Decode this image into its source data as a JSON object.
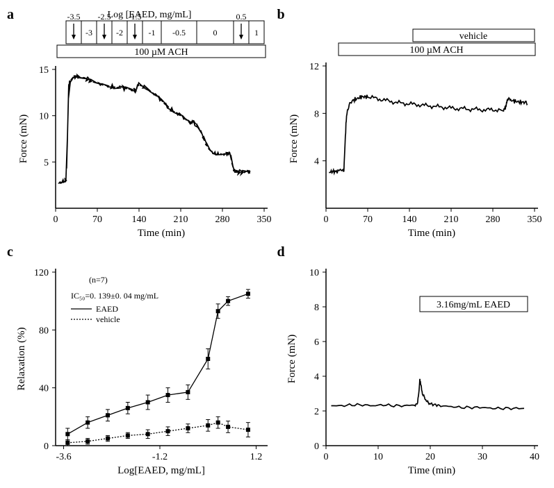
{
  "panels": {
    "a": {
      "label": "a",
      "top_axis_label": "Log [EAED, mg/mL]",
      "top_ticks": [
        "-3.5",
        "-3",
        "-2.5",
        "-2",
        "-1.5",
        "-1",
        "-0.5",
        "0",
        "0.5",
        "1"
      ],
      "treatment_bar": "100 µM ACH",
      "xlabel": "Time (min)",
      "ylabel": "Force (mN)",
      "xlim": [
        0,
        350
      ],
      "xticks": [
        0,
        70,
        140,
        210,
        280,
        350
      ],
      "ylim": [
        0,
        15
      ],
      "yticks": [
        5,
        10,
        15
      ],
      "trace_color": "#000000",
      "background_color": "#ffffff",
      "trace": [
        [
          5,
          2.7
        ],
        [
          10,
          2.8
        ],
        [
          15,
          2.9
        ],
        [
          18,
          3.0
        ],
        [
          20,
          8
        ],
        [
          22,
          13.4
        ],
        [
          25,
          13.8
        ],
        [
          30,
          14.2
        ],
        [
          35,
          14.3
        ],
        [
          40,
          14.2
        ],
        [
          50,
          14.0
        ],
        [
          55,
          13.9
        ],
        [
          60,
          13.7
        ],
        [
          70,
          13.5
        ],
        [
          80,
          13.3
        ],
        [
          90,
          13.2
        ],
        [
          100,
          13.1
        ],
        [
          110,
          13.0
        ],
        [
          120,
          12.9
        ],
        [
          130,
          12.8
        ],
        [
          135,
          12.7
        ],
        [
          138,
          13.4
        ],
        [
          140,
          13.3
        ],
        [
          145,
          13.2
        ],
        [
          150,
          13.0
        ],
        [
          160,
          12.6
        ],
        [
          170,
          12.1
        ],
        [
          180,
          11.5
        ],
        [
          190,
          10.9
        ],
        [
          200,
          10.4
        ],
        [
          210,
          10.0
        ],
        [
          220,
          9.5
        ],
        [
          228,
          9.2
        ],
        [
          230,
          9.3
        ],
        [
          235,
          9.1
        ],
        [
          240,
          8.7
        ],
        [
          245,
          8.1
        ],
        [
          250,
          7.3
        ],
        [
          255,
          6.7
        ],
        [
          260,
          6.2
        ],
        [
          265,
          5.9
        ],
        [
          270,
          5.8
        ],
        [
          275,
          5.8
        ],
        [
          280,
          5.8
        ],
        [
          285,
          5.9
        ],
        [
          290,
          6.0
        ],
        [
          293,
          6.0
        ],
        [
          295,
          5.2
        ],
        [
          298,
          4.4
        ],
        [
          300,
          4.0
        ],
        [
          305,
          3.9
        ],
        [
          310,
          3.9
        ],
        [
          315,
          3.9
        ],
        [
          320,
          4.0
        ],
        [
          325,
          4.0
        ],
        [
          326,
          4.0
        ]
      ]
    },
    "b": {
      "label": "b",
      "vehicle_bar": "vehicle",
      "treatment_bar": "100 µM ACH",
      "xlabel": "Time (min)",
      "ylabel": "Force (mN)",
      "xlim": [
        0,
        350
      ],
      "xticks": [
        0,
        70,
        140,
        210,
        280,
        350
      ],
      "ylim": [
        0,
        12
      ],
      "yticks": [
        4,
        8,
        12
      ],
      "trace_color": "#000000",
      "background_color": "#ffffff",
      "trace": [
        [
          5,
          3.0
        ],
        [
          10,
          3.1
        ],
        [
          15,
          3.1
        ],
        [
          20,
          3.1
        ],
        [
          28,
          3.2
        ],
        [
          30,
          3.2
        ],
        [
          32,
          5.5
        ],
        [
          34,
          7.5
        ],
        [
          36,
          8.3
        ],
        [
          40,
          8.8
        ],
        [
          45,
          9.1
        ],
        [
          50,
          9.2
        ],
        [
          55,
          9.3
        ],
        [
          60,
          9.4
        ],
        [
          65,
          9.4
        ],
        [
          70,
          9.4
        ],
        [
          80,
          9.3
        ],
        [
          90,
          9.2
        ],
        [
          100,
          9.1
        ],
        [
          110,
          9.0
        ],
        [
          120,
          8.9
        ],
        [
          130,
          8.85
        ],
        [
          140,
          8.8
        ],
        [
          150,
          8.75
        ],
        [
          160,
          8.7
        ],
        [
          170,
          8.65
        ],
        [
          180,
          8.6
        ],
        [
          190,
          8.55
        ],
        [
          200,
          8.5
        ],
        [
          210,
          8.45
        ],
        [
          220,
          8.4
        ],
        [
          230,
          8.4
        ],
        [
          240,
          8.35
        ],
        [
          250,
          8.35
        ],
        [
          260,
          8.3
        ],
        [
          270,
          8.3
        ],
        [
          280,
          8.3
        ],
        [
          290,
          8.3
        ],
        [
          298,
          8.3
        ],
        [
          300,
          8.4
        ],
        [
          302,
          8.6
        ],
        [
          304,
          9.1
        ],
        [
          306,
          9.15
        ],
        [
          310,
          9.1
        ],
        [
          315,
          9.05
        ],
        [
          320,
          9.0
        ],
        [
          325,
          8.95
        ],
        [
          330,
          8.95
        ],
        [
          335,
          8.9
        ],
        [
          338,
          8.9
        ]
      ]
    },
    "c": {
      "label": "c",
      "n_text": "(n=7)",
      "ic50_text": "IC₅₀=0. 139±0. 04 mg/mL",
      "legend_eaed": "EAED",
      "legend_vehicle": "vehicle",
      "xlabel": "Log[EAED, mg/mL]",
      "ylabel": "Relaxation (%)",
      "xlim": [
        -3.8,
        1.4
      ],
      "xticks": [
        -3.6,
        -1.2,
        1.2
      ],
      "ylim": [
        0,
        120
      ],
      "yticks": [
        0,
        40,
        80,
        120
      ],
      "line_color": "#000000",
      "marker_fill": "#000000",
      "marker_size": 4,
      "background_color": "#ffffff",
      "eaed_points": [
        {
          "x": -3.5,
          "y": 8,
          "err": 4
        },
        {
          "x": -3.0,
          "y": 16,
          "err": 4
        },
        {
          "x": -2.5,
          "y": 21,
          "err": 4
        },
        {
          "x": -2.0,
          "y": 26,
          "err": 4
        },
        {
          "x": -1.5,
          "y": 30,
          "err": 5
        },
        {
          "x": -1.0,
          "y": 35,
          "err": 5
        },
        {
          "x": -0.5,
          "y": 37,
          "err": 5
        },
        {
          "x": 0.0,
          "y": 60,
          "err": 7
        },
        {
          "x": 0.25,
          "y": 93,
          "err": 5
        },
        {
          "x": 0.5,
          "y": 100,
          "err": 3
        },
        {
          "x": 1.0,
          "y": 105,
          "err": 3
        }
      ],
      "vehicle_points": [
        {
          "x": -3.5,
          "y": 2,
          "err": 2
        },
        {
          "x": -3.0,
          "y": 3,
          "err": 2
        },
        {
          "x": -2.5,
          "y": 5,
          "err": 2
        },
        {
          "x": -2.0,
          "y": 7,
          "err": 2
        },
        {
          "x": -1.5,
          "y": 8,
          "err": 3
        },
        {
          "x": -1.0,
          "y": 10,
          "err": 3
        },
        {
          "x": -0.5,
          "y": 12,
          "err": 3
        },
        {
          "x": 0.0,
          "y": 14,
          "err": 4
        },
        {
          "x": 0.25,
          "y": 16,
          "err": 4
        },
        {
          "x": 0.5,
          "y": 13,
          "err": 4
        },
        {
          "x": 1.0,
          "y": 11,
          "err": 5
        }
      ]
    },
    "d": {
      "label": "d",
      "annotation": "3.16mg/mL EAED",
      "xlabel": "Time (min)",
      "ylabel": "Force (mN)",
      "xlim": [
        0,
        40
      ],
      "xticks": [
        0,
        10,
        20,
        30,
        40
      ],
      "ylim": [
        0,
        10
      ],
      "yticks": [
        0,
        2,
        4,
        6,
        8,
        10
      ],
      "trace_color": "#000000",
      "background_color": "#ffffff",
      "trace": [
        [
          1,
          2.3
        ],
        [
          3,
          2.3
        ],
        [
          5,
          2.35
        ],
        [
          7,
          2.35
        ],
        [
          9,
          2.3
        ],
        [
          11,
          2.35
        ],
        [
          13,
          2.3
        ],
        [
          15,
          2.3
        ],
        [
          17,
          2.35
        ],
        [
          17.5,
          2.4
        ],
        [
          17.8,
          3.0
        ],
        [
          18,
          3.8
        ],
        [
          18.2,
          3.5
        ],
        [
          18.5,
          3.0
        ],
        [
          19,
          2.7
        ],
        [
          19.5,
          2.5
        ],
        [
          20,
          2.4
        ],
        [
          21,
          2.35
        ],
        [
          22,
          2.3
        ],
        [
          24,
          2.25
        ],
        [
          26,
          2.2
        ],
        [
          28,
          2.2
        ],
        [
          30,
          2.2
        ],
        [
          32,
          2.15
        ],
        [
          34,
          2.15
        ],
        [
          36,
          2.15
        ],
        [
          38,
          2.15
        ]
      ]
    }
  }
}
